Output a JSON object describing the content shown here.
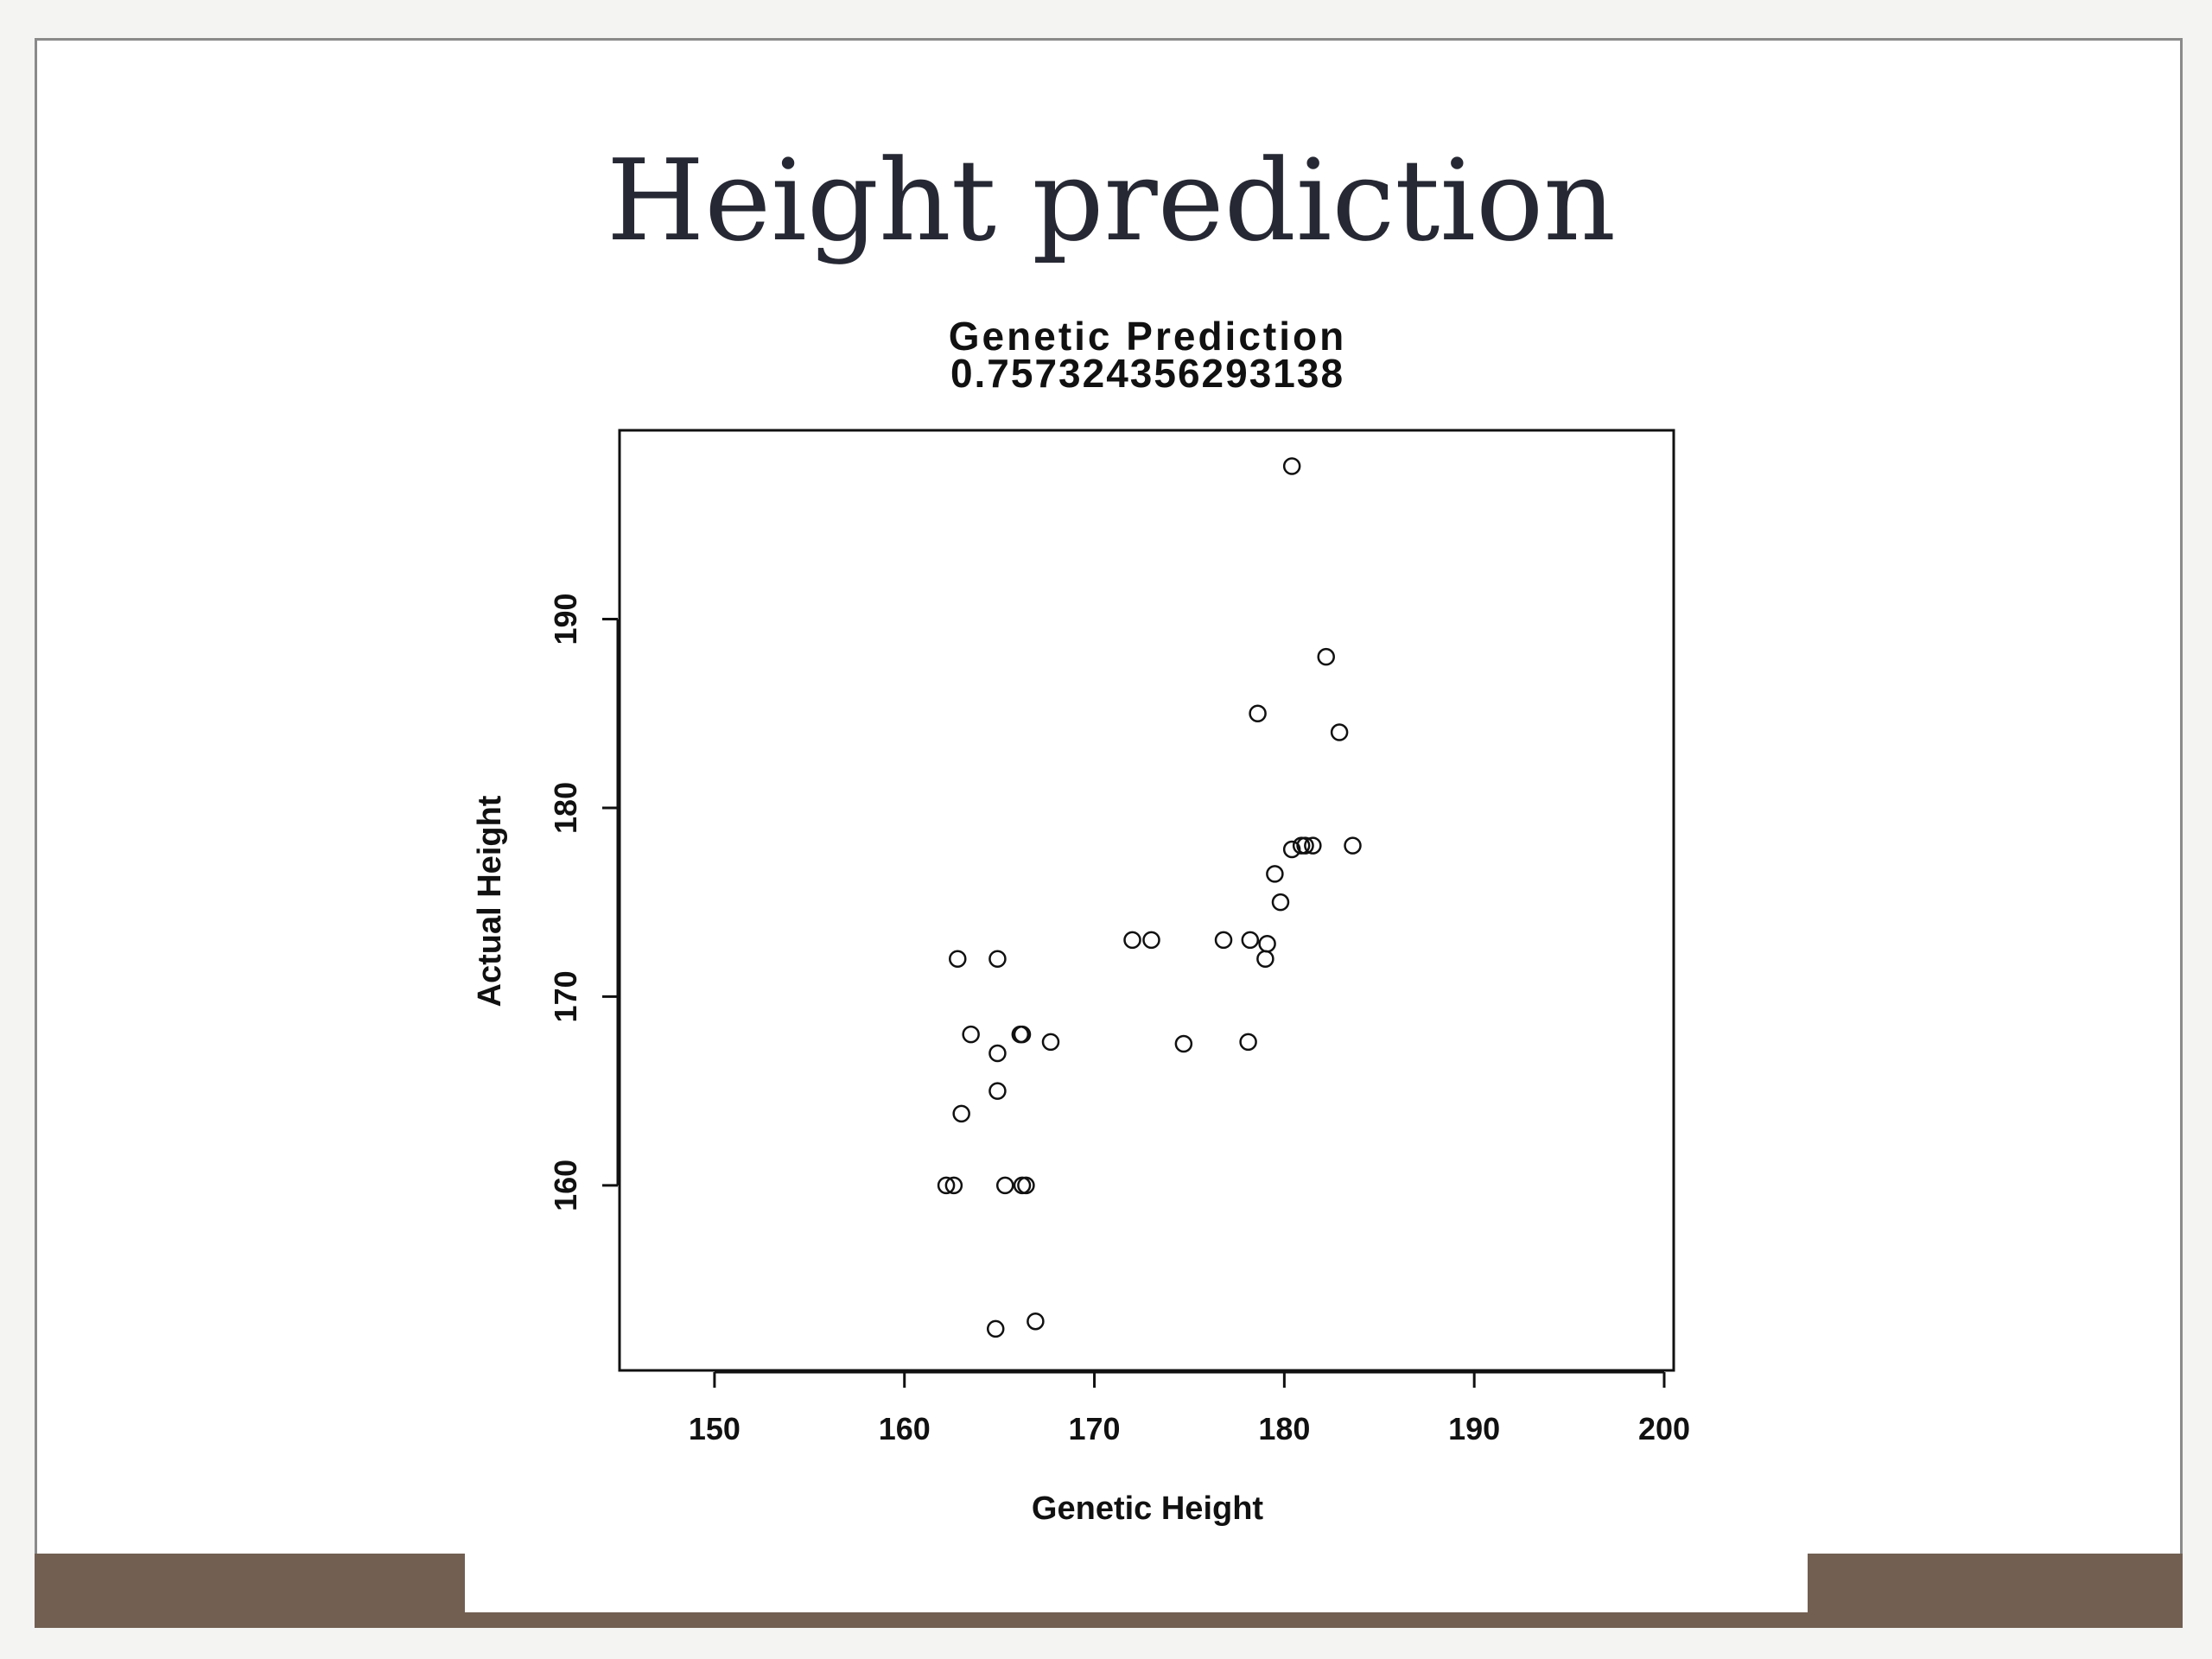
{
  "slide": {
    "title": "Height prediction"
  },
  "colors": {
    "footer_band": "#725f52",
    "title_text": "#262833",
    "chart_ink": "#111111"
  },
  "chart_data": {
    "type": "scatter",
    "title": "Genetic Prediction",
    "subtitle": "0.757324356293138",
    "xlabel": "Genetic Height",
    "ylabel": "Actual Height",
    "xlim": [
      145,
      200.5
    ],
    "ylim": [
      150.2,
      200
    ],
    "x_ticks": [
      "150",
      "160",
      "170",
      "180",
      "190",
      "200"
    ],
    "y_ticks": [
      "160",
      "170",
      "180",
      "190"
    ],
    "grid": false,
    "legend": "none",
    "points": [
      {
        "x": 180.4,
        "y": 198.1
      },
      {
        "x": 182.2,
        "y": 188.0
      },
      {
        "x": 178.6,
        "y": 185.0
      },
      {
        "x": 182.9,
        "y": 184.0
      },
      {
        "x": 180.4,
        "y": 177.8
      },
      {
        "x": 180.9,
        "y": 178.0
      },
      {
        "x": 181.1,
        "y": 178.0
      },
      {
        "x": 181.5,
        "y": 178.0
      },
      {
        "x": 183.6,
        "y": 178.0
      },
      {
        "x": 179.5,
        "y": 176.5
      },
      {
        "x": 179.8,
        "y": 175.0
      },
      {
        "x": 172.0,
        "y": 173.0
      },
      {
        "x": 173.0,
        "y": 173.0
      },
      {
        "x": 176.8,
        "y": 173.0
      },
      {
        "x": 178.2,
        "y": 173.0
      },
      {
        "x": 179.1,
        "y": 172.8
      },
      {
        "x": 179.0,
        "y": 172.0
      },
      {
        "x": 162.8,
        "y": 172.0
      },
      {
        "x": 164.9,
        "y": 172.0
      },
      {
        "x": 163.5,
        "y": 168.0
      },
      {
        "x": 166.1,
        "y": 168.0
      },
      {
        "x": 166.2,
        "y": 168.0
      },
      {
        "x": 167.7,
        "y": 167.6
      },
      {
        "x": 174.7,
        "y": 167.5
      },
      {
        "x": 178.1,
        "y": 167.6
      },
      {
        "x": 164.9,
        "y": 167.0
      },
      {
        "x": 164.9,
        "y": 165.0
      },
      {
        "x": 163.0,
        "y": 163.8
      },
      {
        "x": 162.2,
        "y": 160.0
      },
      {
        "x": 162.6,
        "y": 160.0
      },
      {
        "x": 165.3,
        "y": 160.0
      },
      {
        "x": 166.2,
        "y": 160.0
      },
      {
        "x": 166.4,
        "y": 160.0
      },
      {
        "x": 164.8,
        "y": 152.4
      },
      {
        "x": 166.9,
        "y": 152.8
      }
    ]
  }
}
